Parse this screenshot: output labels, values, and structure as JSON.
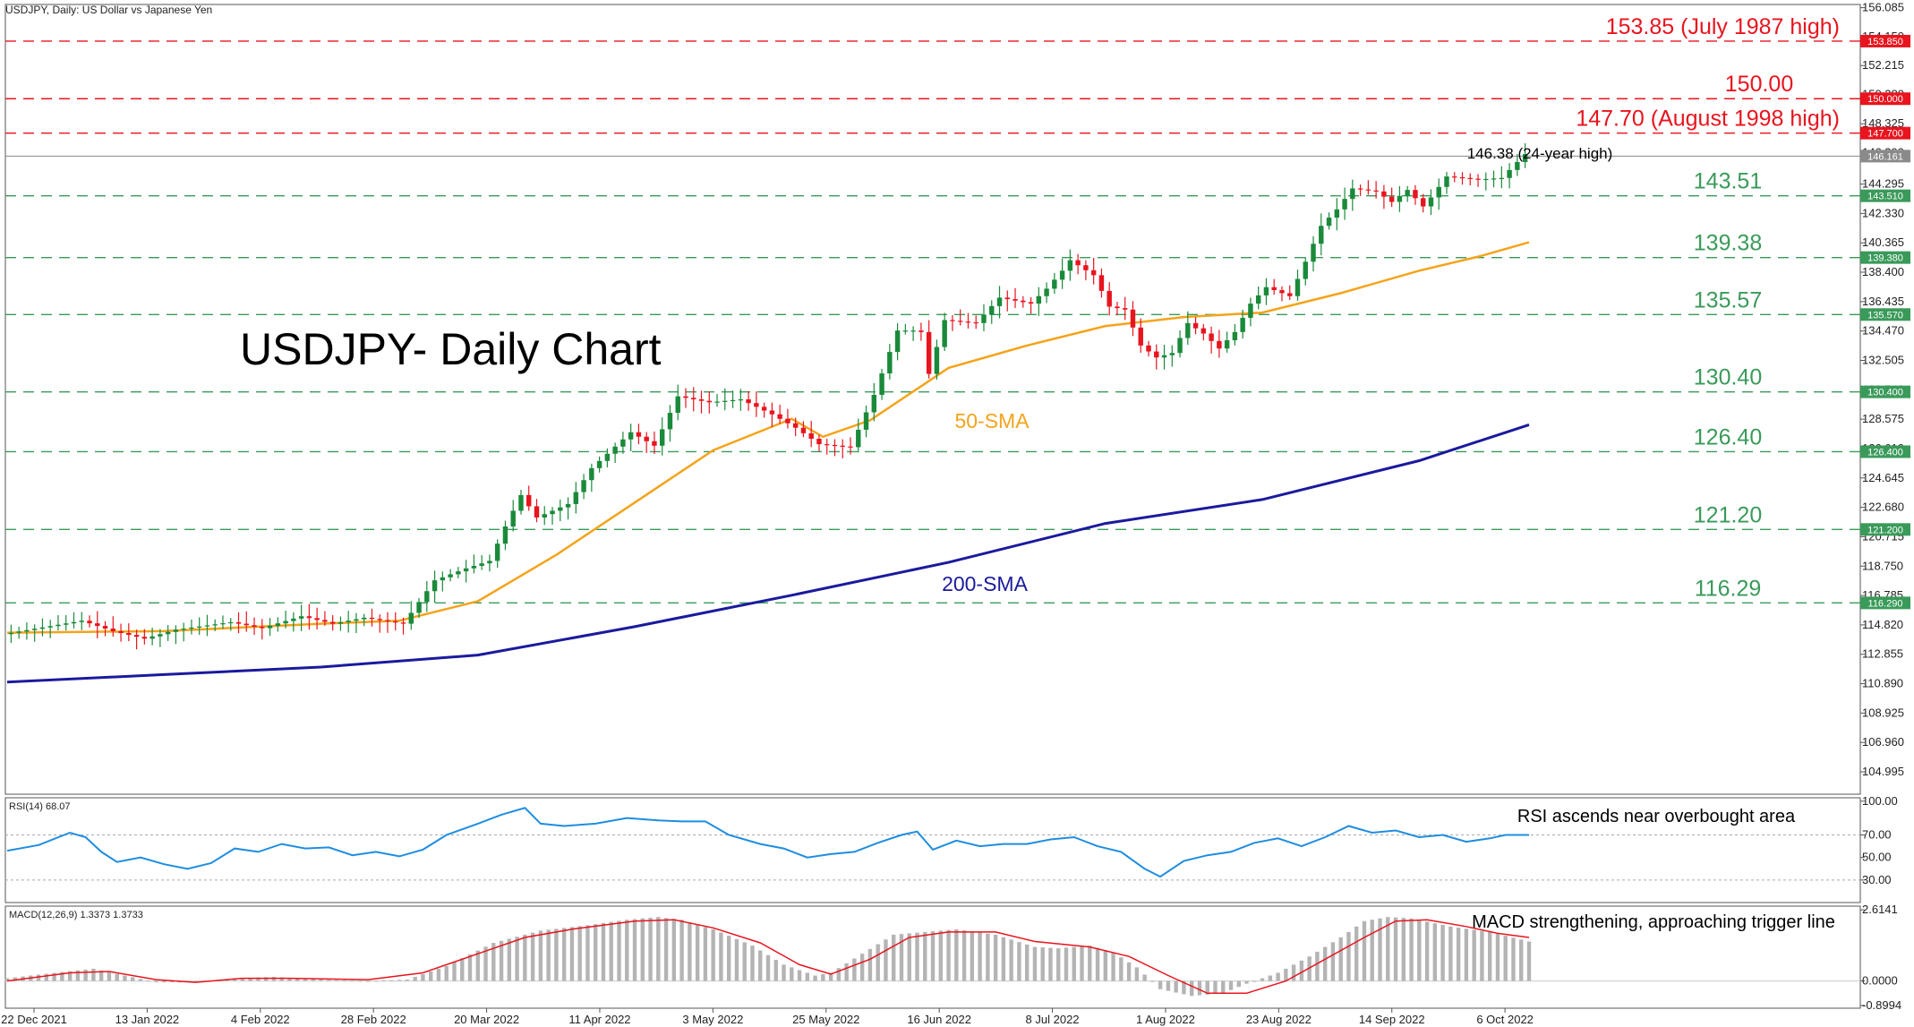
{
  "header": {
    "symbol_info": "USDJPY, Daily:  US Dollar vs Japanese Yen",
    "chart_title": "USDJPY- Daily Chart"
  },
  "colors": {
    "bull": "#1a8a3a",
    "bear": "#e8141e",
    "sma50": "#f5a31a",
    "sma200": "#1a1a9e",
    "resistance": "#e8141e",
    "support": "#3a9a5a",
    "rsi": "#1f8de0",
    "macd_hist": "#b4b4b4",
    "macd_signal": "#e8141e"
  },
  "chart_data": [
    {
      "type": "candlestick",
      "title": "USDJPY- Daily Chart",
      "ylim": [
        103.5,
        156.3
      ],
      "y_ticks": [
        "156.085",
        "154.150",
        "152.215",
        "150.280",
        "148.325",
        "146.390",
        "144.295",
        "142.330",
        "140.365",
        "138.400",
        "136.435",
        "134.470",
        "132.505",
        "130.540",
        "128.575",
        "126.610",
        "124.645",
        "122.680",
        "120.715",
        "118.750",
        "116.785",
        "114.820",
        "112.855",
        "110.890",
        "108.925",
        "106.960",
        "104.995"
      ],
      "x_labels": [
        "22 Dec 2021",
        "13 Jan 2022",
        "4 Feb 2022",
        "28 Feb 2022",
        "20 Mar 2022",
        "11 Apr 2022",
        "3 May 2022",
        "25 May 2022",
        "16 Jun 2022",
        "8 Jul 2022",
        "1 Aug 2022",
        "23 Aug 2022",
        "14 Sep 2022",
        "6 Oct 2022"
      ],
      "trend_points": [
        [
          0,
          114.2
        ],
        [
          10,
          115.1
        ],
        [
          14,
          114.4
        ],
        [
          18,
          113.9
        ],
        [
          22,
          114.5
        ],
        [
          29,
          115.0
        ],
        [
          33,
          114.6
        ],
        [
          38,
          115.4
        ],
        [
          42,
          114.9
        ],
        [
          46,
          115.3
        ],
        [
          51,
          114.9
        ],
        [
          55,
          117.8
        ],
        [
          59,
          118.6
        ],
        [
          62,
          119.1
        ],
        [
          64,
          121.4
        ],
        [
          66,
          123.5
        ],
        [
          68,
          122.0
        ],
        [
          72,
          122.9
        ],
        [
          75,
          125.3
        ],
        [
          80,
          127.7
        ],
        [
          83,
          126.8
        ],
        [
          86,
          130.1
        ],
        [
          90,
          129.7
        ],
        [
          94,
          129.9
        ],
        [
          98,
          128.9
        ],
        [
          101,
          128.0
        ],
        [
          104,
          126.9
        ],
        [
          108,
          126.7
        ],
        [
          111,
          130.2
        ],
        [
          114,
          134.5
        ],
        [
          116,
          134.5
        ],
        [
          117,
          134.4
        ],
        [
          118,
          131.6
        ],
        [
          120,
          135.2
        ],
        [
          124,
          135.0
        ],
        [
          127,
          136.7
        ],
        [
          131,
          136.3
        ],
        [
          133,
          137.3
        ],
        [
          135,
          138.5
        ],
        [
          136,
          139.2
        ],
        [
          139,
          138.2
        ],
        [
          141,
          136.1
        ],
        [
          143,
          135.9
        ],
        [
          145,
          133.5
        ],
        [
          147,
          132.7
        ],
        [
          149,
          133.0
        ],
        [
          151,
          135.0
        ],
        [
          153,
          134.3
        ],
        [
          155,
          133.3
        ],
        [
          157,
          134.4
        ],
        [
          159,
          136.3
        ],
        [
          161,
          137.4
        ],
        [
          164,
          136.8
        ],
        [
          166,
          139.1
        ],
        [
          168,
          141.5
        ],
        [
          170,
          142.6
        ],
        [
          172,
          144.0
        ],
        [
          175,
          143.8
        ],
        [
          177,
          143.1
        ],
        [
          179,
          143.9
        ],
        [
          181,
          142.8
        ],
        [
          182,
          143.4
        ],
        [
          184,
          144.8
        ],
        [
          188,
          144.6
        ],
        [
          191,
          144.7
        ],
        [
          194,
          146.3
        ]
      ],
      "series": [
        {
          "name": "50-SMA",
          "points": [
            [
              0,
              114.3
            ],
            [
              20,
              114.4
            ],
            [
              40,
              114.9
            ],
            [
              50,
              115.1
            ],
            [
              60,
              116.4
            ],
            [
              70,
              119.5
            ],
            [
              80,
              123.0
            ],
            [
              90,
              126.5
            ],
            [
              100,
              128.6
            ],
            [
              104,
              127.4
            ],
            [
              110,
              128.5
            ],
            [
              120,
              132.0
            ],
            [
              130,
              133.5
            ],
            [
              140,
              134.8
            ],
            [
              150,
              135.4
            ],
            [
              160,
              135.7
            ],
            [
              170,
              137.0
            ],
            [
              180,
              138.5
            ],
            [
              188,
              139.5
            ],
            [
              194,
              140.4
            ]
          ]
        },
        {
          "name": "200-SMA",
          "points": [
            [
              0,
              111.0
            ],
            [
              20,
              111.5
            ],
            [
              40,
              112.0
            ],
            [
              60,
              112.8
            ],
            [
              80,
              114.7
            ],
            [
              100,
              116.8
            ],
            [
              120,
              119.0
            ],
            [
              140,
              121.6
            ],
            [
              160,
              123.2
            ],
            [
              180,
              125.8
            ],
            [
              194,
              128.2
            ]
          ]
        }
      ],
      "levels": [
        {
          "value": 153.85,
          "label": "153.85 (July 1987 high)",
          "tag": "153.850",
          "kind": "resistance"
        },
        {
          "value": 150.0,
          "label": "150.00",
          "tag": "150.000",
          "kind": "resistance"
        },
        {
          "value": 147.7,
          "label": "147.70 (August 1998 high)",
          "tag": "147.700",
          "kind": "resistance"
        },
        {
          "value": 143.51,
          "label": "143.51",
          "tag": "143.510",
          "kind": "support"
        },
        {
          "value": 139.38,
          "label": "139.38",
          "tag": "139.380",
          "kind": "support"
        },
        {
          "value": 135.57,
          "label": "135.57",
          "tag": "135.570",
          "kind": "support"
        },
        {
          "value": 130.4,
          "label": "130.40",
          "tag": "130.400",
          "kind": "support"
        },
        {
          "value": 126.4,
          "label": "126.40",
          "tag": "126.400",
          "kind": "support"
        },
        {
          "value": 121.2,
          "label": "121.20",
          "tag": "121.200",
          "kind": "support"
        },
        {
          "value": 116.29,
          "label": "116.29",
          "tag": "116.290",
          "kind": "support"
        }
      ],
      "current_price": {
        "value": 146.161,
        "tag": "146.161"
      },
      "annotations": {
        "high": "146.38 (24-year high)",
        "sma50": "50-SMA",
        "sma200": "200-SMA"
      }
    },
    {
      "type": "line",
      "title": "RSI(14) 68.07",
      "ylim": [
        10,
        103
      ],
      "y_ticks": [
        "100.00",
        "70.00",
        "50.00",
        "30.00"
      ],
      "overbought": 70,
      "annotation": "RSI ascends near overbought area",
      "points": [
        [
          0,
          56
        ],
        [
          4,
          61
        ],
        [
          8,
          72
        ],
        [
          10,
          68
        ],
        [
          12,
          55
        ],
        [
          14,
          46
        ],
        [
          17,
          50
        ],
        [
          20,
          44
        ],
        [
          23,
          40
        ],
        [
          26,
          45
        ],
        [
          29,
          58
        ],
        [
          32,
          55
        ],
        [
          35,
          62
        ],
        [
          38,
          58
        ],
        [
          41,
          59
        ],
        [
          44,
          52
        ],
        [
          47,
          55
        ],
        [
          50,
          51
        ],
        [
          53,
          57
        ],
        [
          56,
          70
        ],
        [
          60,
          80
        ],
        [
          63,
          88
        ],
        [
          66,
          94
        ],
        [
          68,
          80
        ],
        [
          71,
          78
        ],
        [
          75,
          80
        ],
        [
          79,
          85
        ],
        [
          83,
          83
        ],
        [
          86,
          82
        ],
        [
          89,
          82
        ],
        [
          92,
          70
        ],
        [
          96,
          62
        ],
        [
          99,
          58
        ],
        [
          102,
          50
        ],
        [
          105,
          53
        ],
        [
          108,
          55
        ],
        [
          111,
          63
        ],
        [
          114,
          70
        ],
        [
          116,
          73
        ],
        [
          118,
          57
        ],
        [
          121,
          65
        ],
        [
          124,
          60
        ],
        [
          127,
          62
        ],
        [
          130,
          62
        ],
        [
          133,
          66
        ],
        [
          136,
          68
        ],
        [
          139,
          60
        ],
        [
          142,
          55
        ],
        [
          145,
          40
        ],
        [
          147,
          33
        ],
        [
          150,
          47
        ],
        [
          153,
          52
        ],
        [
          156,
          55
        ],
        [
          159,
          63
        ],
        [
          162,
          67
        ],
        [
          165,
          60
        ],
        [
          168,
          68
        ],
        [
          171,
          78
        ],
        [
          174,
          72
        ],
        [
          177,
          74
        ],
        [
          180,
          68
        ],
        [
          183,
          70
        ],
        [
          186,
          64
        ],
        [
          189,
          67
        ],
        [
          191,
          70
        ],
        [
          194,
          70
        ]
      ]
    },
    {
      "type": "bar",
      "title": "MACD(12,26,9) 1.3373 1.3733",
      "ylim": [
        -1.0,
        2.75
      ],
      "y_ticks": [
        "2.6141",
        "0.0000",
        "-0.8994"
      ],
      "annotation": "MACD strengthening, approaching trigger line",
      "hist_points": [
        [
          0,
          0.1
        ],
        [
          6,
          0.3
        ],
        [
          11,
          0.45
        ],
        [
          15,
          0.2
        ],
        [
          19,
          -0.05
        ],
        [
          23,
          -0.05
        ],
        [
          29,
          0.1
        ],
        [
          34,
          0.15
        ],
        [
          40,
          0.05
        ],
        [
          46,
          0.0
        ],
        [
          51,
          0.05
        ],
        [
          56,
          0.55
        ],
        [
          62,
          1.4
        ],
        [
          68,
          1.85
        ],
        [
          74,
          2.05
        ],
        [
          79,
          2.25
        ],
        [
          83,
          2.35
        ],
        [
          86,
          2.25
        ],
        [
          90,
          1.9
        ],
        [
          95,
          1.3
        ],
        [
          99,
          0.6
        ],
        [
          103,
          0.2
        ],
        [
          105,
          0.3
        ],
        [
          109,
          1.0
        ],
        [
          113,
          1.7
        ],
        [
          117,
          1.8
        ],
        [
          121,
          1.9
        ],
        [
          126,
          1.7
        ],
        [
          131,
          1.25
        ],
        [
          134,
          1.2
        ],
        [
          138,
          1.3
        ],
        [
          141,
          1.05
        ],
        [
          144,
          0.5
        ],
        [
          147,
          -0.3
        ],
        [
          151,
          -0.55
        ],
        [
          155,
          -0.45
        ],
        [
          158,
          -0.1
        ],
        [
          162,
          0.3
        ],
        [
          166,
          0.9
        ],
        [
          170,
          1.6
        ],
        [
          173,
          2.2
        ],
        [
          176,
          2.35
        ],
        [
          179,
          2.3
        ],
        [
          184,
          2.0
        ],
        [
          189,
          1.8
        ],
        [
          194,
          1.45
        ]
      ],
      "signal_points": [
        [
          0,
          0.0
        ],
        [
          8,
          0.3
        ],
        [
          13,
          0.35
        ],
        [
          19,
          0.05
        ],
        [
          24,
          -0.05
        ],
        [
          30,
          0.1
        ],
        [
          36,
          0.1
        ],
        [
          46,
          0.05
        ],
        [
          53,
          0.3
        ],
        [
          60,
          1.0
        ],
        [
          66,
          1.6
        ],
        [
          72,
          1.9
        ],
        [
          80,
          2.2
        ],
        [
          85,
          2.25
        ],
        [
          90,
          1.95
        ],
        [
          96,
          1.4
        ],
        [
          101,
          0.6
        ],
        [
          105,
          0.25
        ],
        [
          110,
          0.8
        ],
        [
          115,
          1.6
        ],
        [
          120,
          1.8
        ],
        [
          126,
          1.8
        ],
        [
          131,
          1.45
        ],
        [
          138,
          1.25
        ],
        [
          143,
          0.9
        ],
        [
          148,
          0.2
        ],
        [
          153,
          -0.45
        ],
        [
          158,
          -0.45
        ],
        [
          163,
          0.0
        ],
        [
          168,
          0.8
        ],
        [
          173,
          1.6
        ],
        [
          177,
          2.2
        ],
        [
          181,
          2.25
        ],
        [
          186,
          2.0
        ],
        [
          190,
          1.75
        ],
        [
          194,
          1.6
        ]
      ]
    }
  ]
}
